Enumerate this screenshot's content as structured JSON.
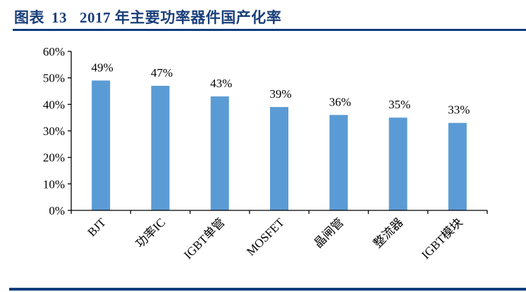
{
  "header": {
    "figure_label": "图表",
    "figure_number": "13",
    "title": "2017 年主要功率器件国产化率"
  },
  "colors": {
    "bar": "#5B9BD5",
    "title": "#1a3f7a",
    "rule": "#0d3d7c",
    "axis": "#000000"
  },
  "chart_data": {
    "type": "bar",
    "title": "2017 年主要功率器件国产化率",
    "categories": [
      "BJT",
      "功率IC",
      "IGBT单管",
      "MOSFET",
      "晶闸管",
      "整流器",
      "IGBT模块"
    ],
    "values": [
      49,
      47,
      43,
      39,
      36,
      35,
      33
    ],
    "data_labels": [
      "49%",
      "47%",
      "43%",
      "39%",
      "36%",
      "35%",
      "33%"
    ],
    "xlabel": "",
    "ylabel": "",
    "ylim": [
      0,
      60
    ],
    "yticks": [
      "0%",
      "10%",
      "20%",
      "30%",
      "40%",
      "50%",
      "60%"
    ],
    "grid": false,
    "legend": "none",
    "x_label_rotation": -45
  }
}
